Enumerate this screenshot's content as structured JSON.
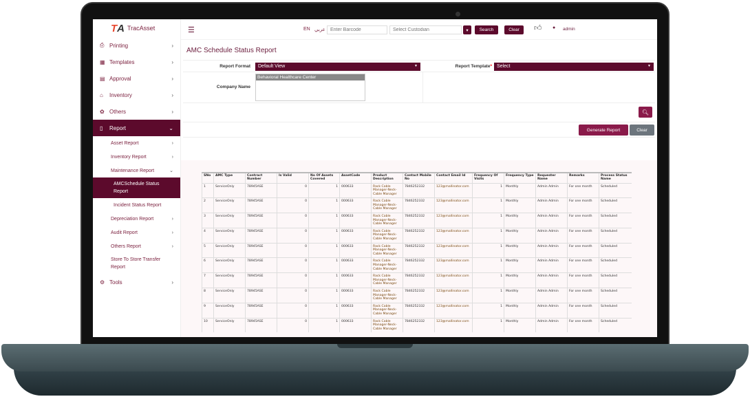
{
  "app": {
    "logo": "TracAsset"
  },
  "sidebar": {
    "items": [
      {
        "label": "Printing",
        "icon": "printer-icon"
      },
      {
        "label": "Templates",
        "icon": "templates-icon"
      },
      {
        "label": "Approval",
        "icon": "approval-icon"
      },
      {
        "label": "Inventory",
        "icon": "store-icon"
      },
      {
        "label": "Others",
        "icon": "others-icon"
      },
      {
        "label": "Report",
        "icon": "report-icon"
      }
    ],
    "report_sub": [
      {
        "label": "Asset Report"
      },
      {
        "label": "Inventory Report"
      },
      {
        "label": "Maintenance Report"
      }
    ],
    "maintenance_sub": [
      {
        "label": "AMCSchedule Status Report"
      },
      {
        "label": "Incident Status Report"
      }
    ],
    "report_sub2": [
      {
        "label": "Depreciation Report"
      },
      {
        "label": "Audit Report"
      },
      {
        "label": "Others Report"
      },
      {
        "label": "Store To Store Transfer Report"
      }
    ],
    "tools": {
      "label": "Tools",
      "icon": "gear-icon"
    }
  },
  "header": {
    "lang_en": "EN",
    "lang_ar": "عربي",
    "barcode_placeholder": "Enter Barcode",
    "custodian_placeholder": "Select Custodian",
    "search": "Search",
    "clear": "Clear",
    "user": "admin"
  },
  "page": {
    "title": "AMC Schedule Status Report",
    "report_format_label": "Report Format",
    "report_format_value": "Default View",
    "report_template_label": "Report Template",
    "report_template_value": "Select",
    "company_label": "Company Name",
    "company_selected": "Behavioral Healthcare Center",
    "generate": "Generate Report",
    "clear": "Clear"
  },
  "table": {
    "columns": [
      "SNo",
      "AMC Type",
      "Contract Number",
      "Is Valid",
      "No Of Assets Covered",
      "AssetCode",
      "Product Description",
      "Contact Mobile No",
      "Contact Email Id",
      "Frequency Of Visits",
      "Frequency Type",
      "Requester Name",
      "Remarks",
      "Process Status Name"
    ],
    "rows": [
      [
        "1",
        "ServiceOnly",
        "78945ASE",
        "0",
        "1",
        "000633",
        "Rack Cable Manager-Neck-Cable Manager",
        "7846252332",
        "123@mallinator.com",
        "1",
        "Monthly",
        "Admin Admin",
        "For one month",
        "Scheduled"
      ],
      [
        "2",
        "ServiceOnly",
        "78945ASE",
        "0",
        "1",
        "000633",
        "Rack Cable Manager-Neck-Cable Manager",
        "7846252332",
        "123@mallinator.com",
        "1",
        "Monthly",
        "Admin Admin",
        "For one month",
        "Scheduled"
      ],
      [
        "3",
        "ServiceOnly",
        "78945ASE",
        "0",
        "1",
        "000633",
        "Rack Cable Manager-Neck-Cable Manager",
        "7846252332",
        "123@mallinator.com",
        "1",
        "Monthly",
        "Admin Admin",
        "For one month",
        "Scheduled"
      ],
      [
        "4",
        "ServiceOnly",
        "78945ASE",
        "0",
        "1",
        "000633",
        "Rack Cable Manager-Neck-Cable Manager",
        "7846252332",
        "123@mallinator.com",
        "1",
        "Monthly",
        "Admin Admin",
        "For one month",
        "Scheduled"
      ],
      [
        "5",
        "ServiceOnly",
        "78945ASE",
        "0",
        "1",
        "000633",
        "Rack Cable Manager-Neck-Cable Manager",
        "7846252332",
        "123@mallinator.com",
        "1",
        "Monthly",
        "Admin Admin",
        "For one month",
        "Scheduled"
      ],
      [
        "6",
        "ServiceOnly",
        "78945ASE",
        "0",
        "1",
        "000633",
        "Rack Cable Manager-Neck-Cable Manager",
        "7846252332",
        "123@mallinator.com",
        "1",
        "Monthly",
        "Admin Admin",
        "For one month",
        "Scheduled"
      ],
      [
        "7",
        "ServiceOnly",
        "78945ASE",
        "0",
        "1",
        "000633",
        "Rack Cable Manager-Neck-Cable Manager",
        "7846252332",
        "123@mallinator.com",
        "1",
        "Monthly",
        "Admin Admin",
        "For one month",
        "Scheduled"
      ],
      [
        "8",
        "ServiceOnly",
        "78945ASE",
        "0",
        "1",
        "000633",
        "Rack Cable Manager-Neck-Cable Manager",
        "7846252332",
        "123@mallinator.com",
        "1",
        "Monthly",
        "Admin Admin",
        "For one month",
        "Scheduled"
      ],
      [
        "9",
        "ServiceOnly",
        "78945ASE",
        "0",
        "1",
        "000633",
        "Rack Cable Manager-Neck-Cable Manager",
        "7846252332",
        "123@mallinator.com",
        "1",
        "Monthly",
        "Admin Admin",
        "For one month",
        "Scheduled"
      ],
      [
        "10",
        "ServiceOnly",
        "78945ASE",
        "0",
        "1",
        "000633",
        "Rack Cable Manager-Neck-Cable Manager",
        "7846252332",
        "123@mallinator.com",
        "1",
        "Monthly",
        "Admin Admin",
        "For one month",
        "Scheduled"
      ]
    ]
  },
  "colors": {
    "brand": "#5c0a2c",
    "accent": "#8a1a4a",
    "clear_button": "#6c757d"
  }
}
